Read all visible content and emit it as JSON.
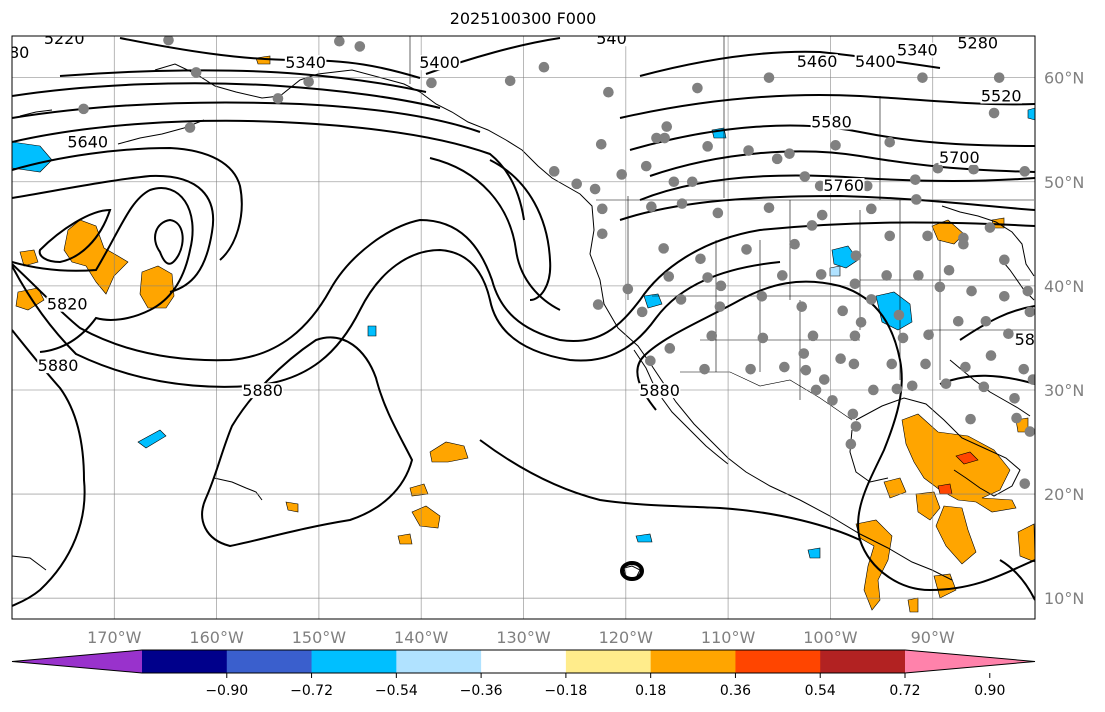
{
  "title": "2025100300 F000",
  "map": {
    "lon_range": [
      -180,
      -80
    ],
    "lat_range": [
      8,
      64
    ],
    "lon_ticks": [
      {
        "value": -170,
        "label": "170°W"
      },
      {
        "value": -160,
        "label": "160°W"
      },
      {
        "value": -150,
        "label": "150°W"
      },
      {
        "value": -140,
        "label": "140°W"
      },
      {
        "value": -130,
        "label": "130°W"
      },
      {
        "value": -120,
        "label": "120°W"
      },
      {
        "value": -110,
        "label": "110°W"
      },
      {
        "value": -100,
        "label": "100°W"
      },
      {
        "value": -90,
        "label": "90°W"
      }
    ],
    "lat_ticks": [
      {
        "value": 60,
        "label": "60°N"
      },
      {
        "value": 50,
        "label": "50°N"
      },
      {
        "value": 40,
        "label": "40°N"
      },
      {
        "value": 30,
        "label": "30°N"
      },
      {
        "value": 20,
        "label": "20°N"
      },
      {
        "value": 10,
        "label": "10°N"
      }
    ],
    "grid": true
  },
  "contours": [
    {
      "value": "5280"
    },
    {
      "value": "5340"
    },
    {
      "value": "5400"
    },
    {
      "value": "5460"
    },
    {
      "value": "5520"
    },
    {
      "value": "5580"
    },
    {
      "value": "5640"
    },
    {
      "value": "5700"
    },
    {
      "value": "5760"
    },
    {
      "value": "5820"
    },
    {
      "value": "5880"
    }
  ],
  "contour_labels": [
    {
      "text": "80",
      "lon": -179.3,
      "lat": 62.1
    },
    {
      "text": "5220",
      "lon": -174.9,
      "lat": 63.4
    },
    {
      "text": "5340",
      "lon": -151.3,
      "lat": 61.1
    },
    {
      "text": "5400",
      "lon": -138.2,
      "lat": 61.1
    },
    {
      "text": "540",
      "lon": -121.4,
      "lat": 63.4
    },
    {
      "text": "5460",
      "lon": -101.3,
      "lat": 61.2
    },
    {
      "text": "5400",
      "lon": -95.6,
      "lat": 61.2
    },
    {
      "text": "5340",
      "lon": -91.5,
      "lat": 62.3
    },
    {
      "text": "5280",
      "lon": -85.6,
      "lat": 63.0
    },
    {
      "text": "5520",
      "lon": -83.3,
      "lat": 57.9
    },
    {
      "text": "5580",
      "lon": -99.9,
      "lat": 55.4
    },
    {
      "text": "5640",
      "lon": -172.6,
      "lat": 53.5
    },
    {
      "text": "5700",
      "lon": -87.4,
      "lat": 52.0
    },
    {
      "text": "5760",
      "lon": -98.7,
      "lat": 49.3
    },
    {
      "text": "5820",
      "lon": -174.6,
      "lat": 37.9
    },
    {
      "text": "5880",
      "lon": -175.5,
      "lat": 32.0
    },
    {
      "text": "5880",
      "lon": -155.5,
      "lat": 29.6
    },
    {
      "text": "5880",
      "lon": -116.7,
      "lat": 29.6
    },
    {
      "text": "58",
      "lon": -81.0,
      "lat": 34.5
    }
  ],
  "colorbar": {
    "extend": "both",
    "ticks": [
      "−0.90",
      "−0.72",
      "−0.54",
      "−0.36",
      "−0.18",
      "0.18",
      "0.36",
      "0.54",
      "0.72",
      "0.90"
    ],
    "colors": [
      "#9932cc",
      "#00008b",
      "#3a5fcd",
      "#00bfff",
      "#b0e2ff",
      "#ffffff",
      "#ffec8b",
      "#ffa500",
      "#ff4500",
      "#b22222",
      "#ff82ab"
    ]
  },
  "contour_color": "#000000",
  "station_color": "#808080"
}
